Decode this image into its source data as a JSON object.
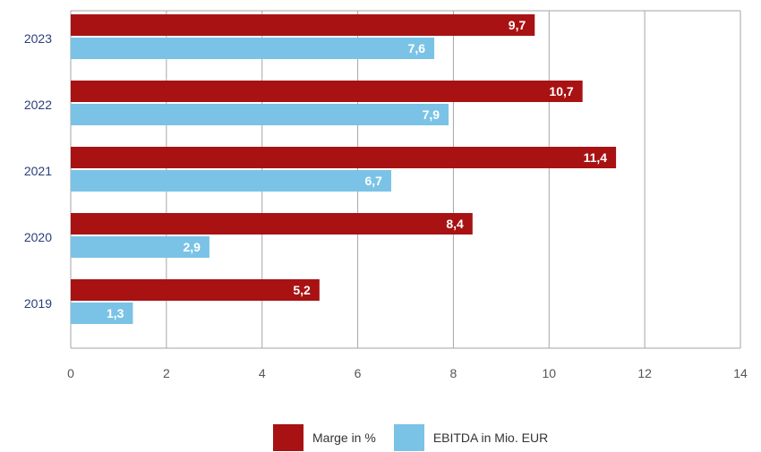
{
  "colors": {
    "marge": "#a81213",
    "ebitda": "#7ac3e6",
    "grid": "#a6a6a6",
    "category_text": "#2c3e7a"
  },
  "chart_data": {
    "type": "bar",
    "orientation": "horizontal",
    "categories": [
      "2023",
      "2022",
      "2021",
      "2020",
      "2019"
    ],
    "series": [
      {
        "name": "Marge in %",
        "values": [
          9.7,
          10.7,
          11.4,
          8.4,
          5.2
        ],
        "labels": [
          "9,7",
          "10,7",
          "11,4",
          "8,4",
          "5,2"
        ]
      },
      {
        "name": "EBITDA in Mio. EUR",
        "values": [
          7.6,
          7.9,
          6.7,
          2.9,
          1.3
        ],
        "labels": [
          "7,6",
          "7,9",
          "6,7",
          "2,9",
          "1,3"
        ]
      }
    ],
    "xlim": [
      0,
      14
    ],
    "xticks": [
      "0",
      "2",
      "4",
      "6",
      "8",
      "10",
      "12",
      "14"
    ],
    "grid": true,
    "legend_position": "bottom"
  }
}
